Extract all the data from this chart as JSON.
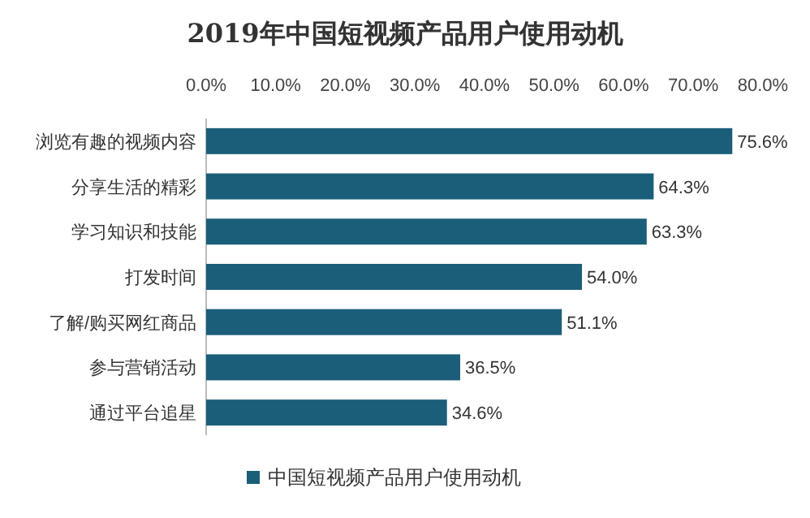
{
  "chart_data": {
    "type": "bar",
    "orientation": "horizontal",
    "title": "2019年中国短视频产品用户使用动机",
    "categories": [
      "浏览有趣的视频内容",
      "分享生活的精彩",
      "学习知识和技能",
      "打发时间",
      "了解/购买网红商品",
      "参与营销活动",
      "通过平台追星"
    ],
    "series": [
      {
        "name": "中国短视频产品用户使用动机",
        "color": "#1b5e79",
        "values": [
          75.6,
          64.3,
          63.3,
          54.0,
          51.1,
          36.5,
          34.6
        ],
        "value_labels": [
          "75.6%",
          "64.3%",
          "63.3%",
          "54.0%",
          "51.1%",
          "36.5%",
          "34.6%"
        ]
      }
    ],
    "xlim": [
      0,
      80
    ],
    "xticks": [
      {
        "value": 0,
        "label": "0.0%"
      },
      {
        "value": 10,
        "label": "10.0%"
      },
      {
        "value": 20,
        "label": "20.0%"
      },
      {
        "value": 30,
        "label": "30.0%"
      },
      {
        "value": 40,
        "label": "40.0%"
      },
      {
        "value": 50,
        "label": "50.0%"
      },
      {
        "value": 60,
        "label": "60.0%"
      },
      {
        "value": 70,
        "label": "70.0%"
      },
      {
        "value": 80,
        "label": "80.0%"
      }
    ],
    "legend": "bottom"
  }
}
